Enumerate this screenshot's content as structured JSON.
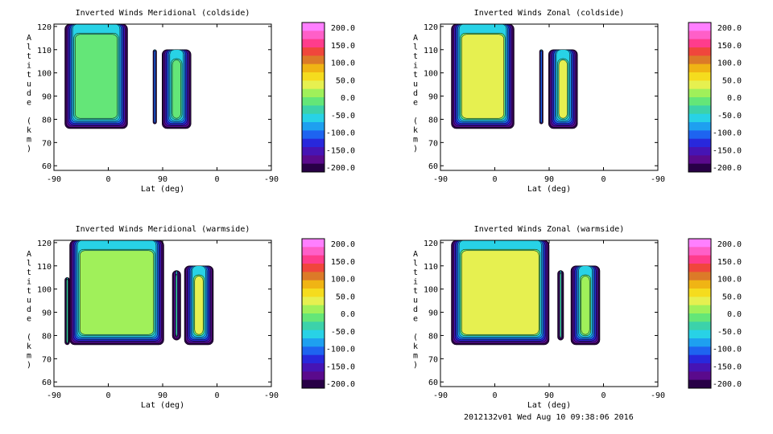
{
  "footer_stamp": "2012132v01 Wed Aug 10 09:38:06 2016",
  "colorbar": {
    "ticks": [
      "200.0",
      "150.0",
      "100.0",
      "50.0",
      "0.0",
      "-50.0",
      "-100.0",
      "-150.0",
      "-200.0"
    ],
    "colors": [
      "#ff7fff",
      "#ff5fc8",
      "#ff3c8c",
      "#f0463c",
      "#dc7a28",
      "#f0b414",
      "#f5dc1e",
      "#e6f050",
      "#a0f05a",
      "#64e678",
      "#3cd2aa",
      "#28d2e6",
      "#1ea0f0",
      "#1e64f0",
      "#2828dc",
      "#4614b4",
      "#5a0a8c",
      "#280046"
    ]
  },
  "chart_data": [
    {
      "type": "heatmap",
      "title": "Inverted Winds Meridional (coldside)",
      "xlabel": "Lat (deg)",
      "ylabel": "Altitude (km)",
      "x_ticks": [
        "-90",
        "0",
        "90",
        "0",
        "-90"
      ],
      "y_ticks": [
        "60",
        "70",
        "80",
        "90",
        "100",
        "110",
        "120"
      ],
      "ylim": [
        58,
        121
      ],
      "zlim": [
        -200,
        200
      ],
      "blocks": [
        {
          "lat_from": -72,
          "lat_to": 32,
          "alt_from": 76,
          "alt_to": 121,
          "level_top": 10,
          "level_mid": 9
        },
        {
          "lat_from": 74,
          "lat_to": 80,
          "alt_from": 78,
          "alt_to": 110,
          "level_top": 12,
          "level_mid": 13
        },
        {
          "lat_from": 89,
          "lat_to": 137,
          "alt_from": 76,
          "alt_to": 110,
          "level_top": 10,
          "level_mid": 9
        }
      ]
    },
    {
      "type": "heatmap",
      "title": "Inverted Winds Zonal (coldside)",
      "xlabel": "Lat (deg)",
      "ylabel": "Altitude (km)",
      "x_ticks": [
        "-90",
        "0",
        "90",
        "0",
        "-90"
      ],
      "y_ticks": [
        "60",
        "70",
        "80",
        "90",
        "100",
        "110",
        "120"
      ],
      "ylim": [
        58,
        121
      ],
      "zlim": [
        -200,
        200
      ],
      "blocks": [
        {
          "lat_from": -72,
          "lat_to": 32,
          "alt_from": 76,
          "alt_to": 121,
          "level_top": 9,
          "level_mid": 7
        },
        {
          "lat_from": 74,
          "lat_to": 80,
          "alt_from": 78,
          "alt_to": 110,
          "level_top": 12,
          "level_mid": 13
        },
        {
          "lat_from": 89,
          "lat_to": 137,
          "alt_from": 76,
          "alt_to": 110,
          "level_top": 10,
          "level_mid": 7
        }
      ]
    },
    {
      "type": "heatmap",
      "title": "Inverted Winds Meridional (warmside)",
      "xlabel": "Lat (deg)",
      "ylabel": "Altitude (km)",
      "x_ticks": [
        "-90",
        "0",
        "90",
        "0",
        "-90"
      ],
      "y_ticks": [
        "60",
        "70",
        "80",
        "90",
        "100",
        "110",
        "120"
      ],
      "ylim": [
        58,
        121
      ],
      "zlim": [
        -200,
        200
      ],
      "blocks": [
        {
          "lat_from": -72,
          "lat_to": -64,
          "alt_from": 76,
          "alt_to": 105,
          "level_top": 9,
          "level_mid": 10
        },
        {
          "lat_from": -64,
          "lat_to": 92,
          "alt_from": 76,
          "alt_to": 121,
          "level_top": 10,
          "level_mid": 8
        },
        {
          "lat_from": 106,
          "lat_to": 120,
          "alt_from": 78,
          "alt_to": 108,
          "level_top": 12,
          "level_mid": 10
        },
        {
          "lat_from": 126,
          "lat_to": 174,
          "alt_from": 76,
          "alt_to": 110,
          "level_top": 9,
          "level_mid": 7
        }
      ]
    },
    {
      "type": "heatmap",
      "title": "Inverted Winds Zonal (warmside)",
      "xlabel": "Lat (deg)",
      "ylabel": "Altitude (km)",
      "x_ticks": [
        "-90",
        "0",
        "90",
        "0",
        "-90"
      ],
      "y_ticks": [
        "60",
        "70",
        "80",
        "90",
        "100",
        "110",
        "120"
      ],
      "ylim": [
        58,
        121
      ],
      "zlim": [
        -200,
        200
      ],
      "blocks": [
        {
          "lat_from": -72,
          "lat_to": 90,
          "alt_from": 76,
          "alt_to": 121,
          "level_top": 9,
          "level_mid": 7
        },
        {
          "lat_from": 104,
          "lat_to": 114,
          "alt_from": 78,
          "alt_to": 108,
          "level_top": 12,
          "level_mid": 10
        },
        {
          "lat_from": 126,
          "lat_to": 174,
          "alt_from": 76,
          "alt_to": 110,
          "level_top": 9,
          "level_mid": 8
        }
      ]
    }
  ]
}
